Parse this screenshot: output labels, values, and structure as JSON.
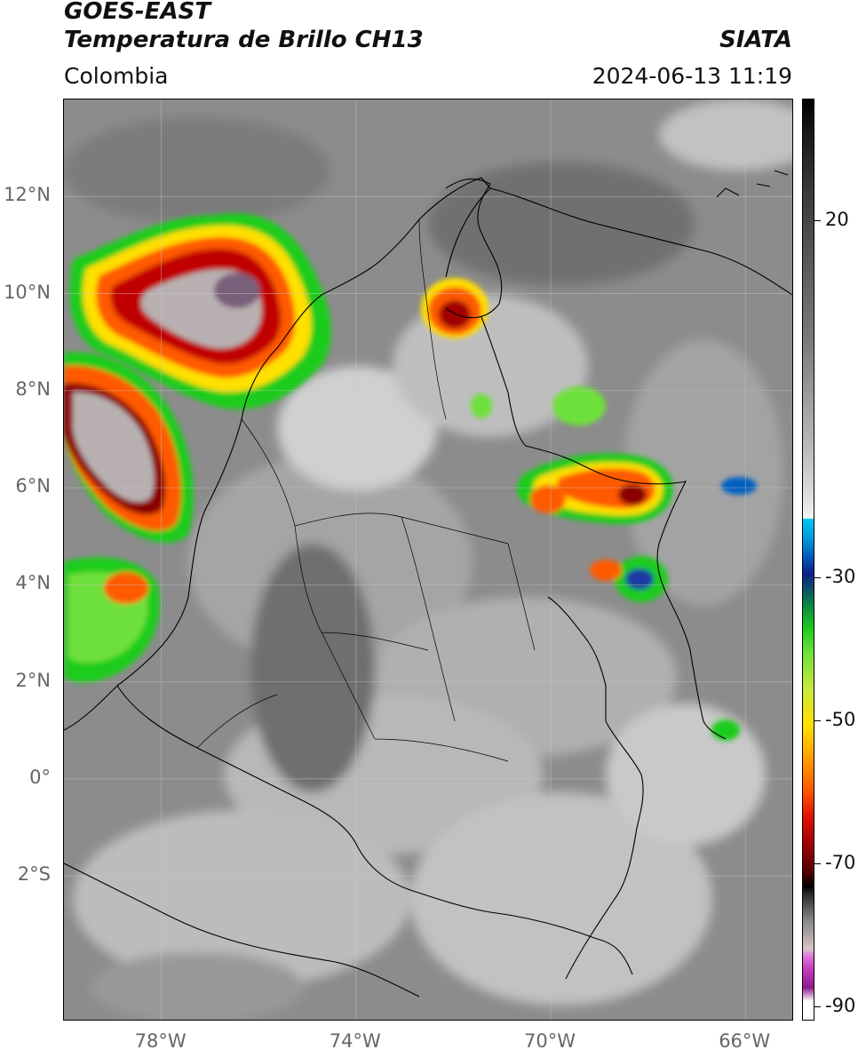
{
  "header": {
    "satellite": "GOES-EAST",
    "product": "Temperatura de Brillo CH13",
    "agency": "SIATA",
    "region": "Colombia",
    "datetime": "2024-06-13 11:19"
  },
  "map": {
    "lat_labels": [
      "12°N",
      "10°N",
      "8°N",
      "6°N",
      "4°N",
      "2°N",
      "0°",
      "2°S"
    ],
    "lon_labels": [
      "78°W",
      "74°W",
      "70°W",
      "66°W"
    ],
    "gridlines": true,
    "extent": {
      "lon": [
        -80,
        -65
      ],
      "lat": [
        -5,
        14
      ]
    }
  },
  "colorbar": {
    "labels": [
      "20",
      "-30",
      "-50",
      "-70",
      "-90"
    ],
    "range": [
      -92,
      37
    ],
    "colors": [
      "#000000",
      "#f4f4f4",
      "#00c8f0",
      "#0a1f8c",
      "#1ecc1e",
      "#ffe000",
      "#e01000",
      "#000000",
      "#e07adc",
      "#8c1c8c",
      "#ffffff"
    ]
  }
}
